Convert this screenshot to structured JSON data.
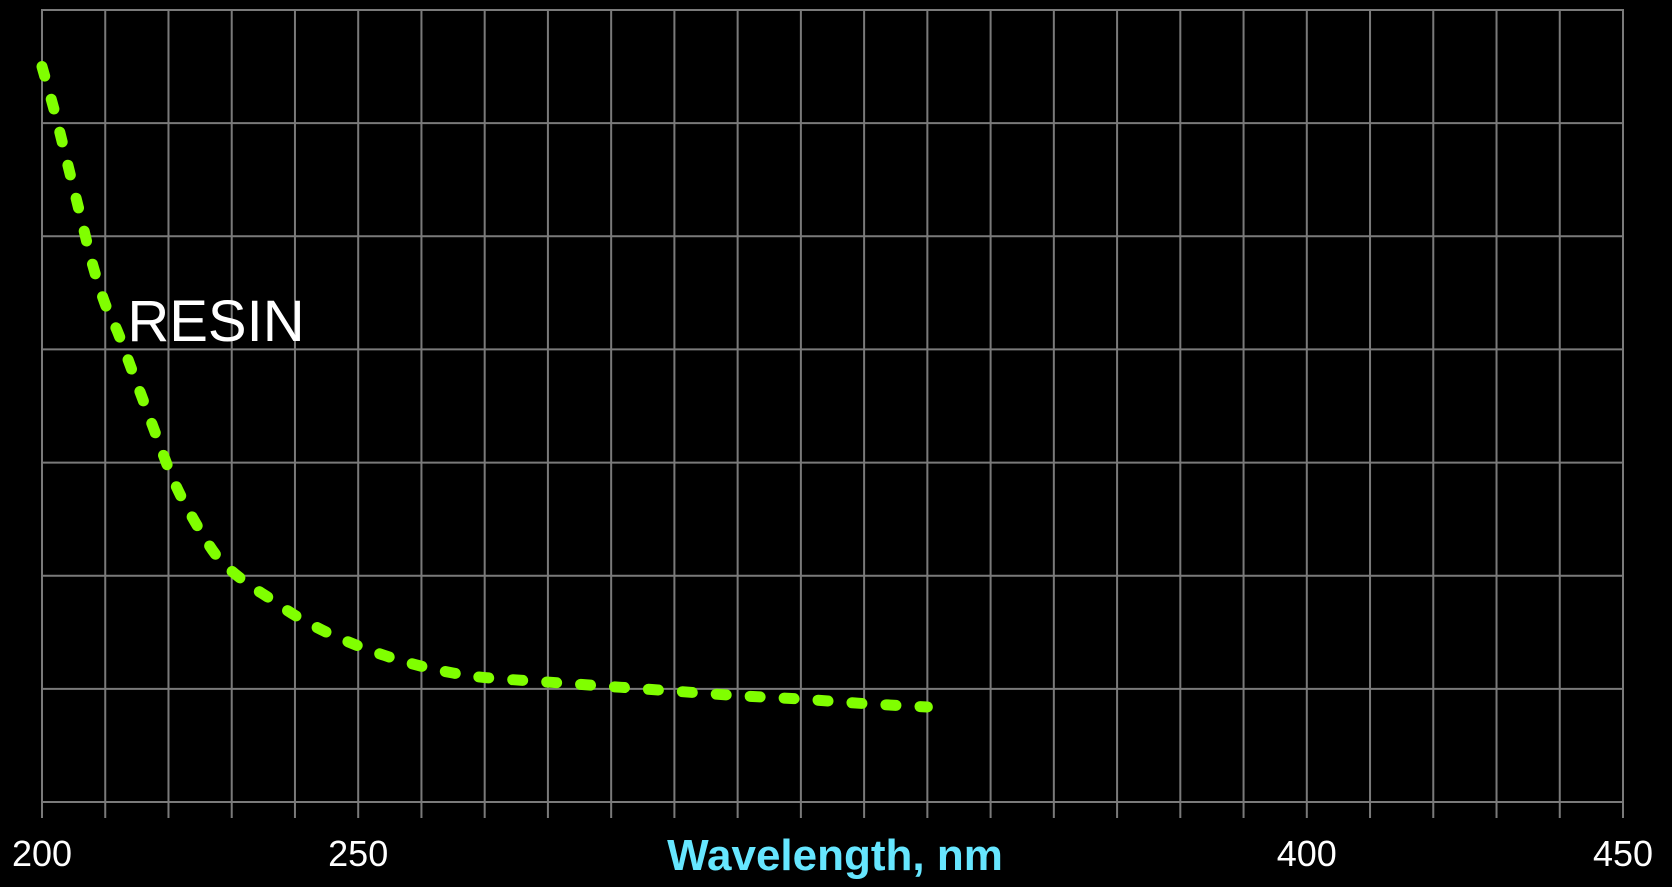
{
  "chart_data": {
    "type": "line",
    "xlabel": "Wavelength, nm",
    "ylabel": "",
    "xlim": [
      200,
      450
    ],
    "ylim": [
      0,
      7
    ],
    "grid": true,
    "x_ticks_labeled": [
      200,
      250,
      400,
      450
    ],
    "x_tick_labels": [
      "200",
      "250",
      "400",
      "450"
    ],
    "annotations": [
      {
        "text": "RESIN",
        "x": 213.5,
        "y": 4.25
      }
    ],
    "series": [
      {
        "color": "#80ff00",
        "style": "dotted",
        "x": [
          200,
          202,
          204,
          206,
          208,
          210,
          212,
          214,
          216,
          218,
          220,
          222,
          225,
          228,
          232,
          236,
          240,
          245,
          250,
          255,
          260,
          265,
          270,
          280,
          290,
          300,
          310,
          320,
          330,
          340
        ],
        "y": [
          6.5,
          6.1,
          5.65,
          5.2,
          4.75,
          4.4,
          4.15,
          3.85,
          3.55,
          3.25,
          2.95,
          2.7,
          2.4,
          2.15,
          1.95,
          1.8,
          1.65,
          1.5,
          1.38,
          1.28,
          1.2,
          1.14,
          1.1,
          1.06,
          1.02,
          0.98,
          0.94,
          0.91,
          0.87,
          0.84
        ]
      }
    ],
    "background": "#000000",
    "grid_color": "#7a7a7a"
  }
}
